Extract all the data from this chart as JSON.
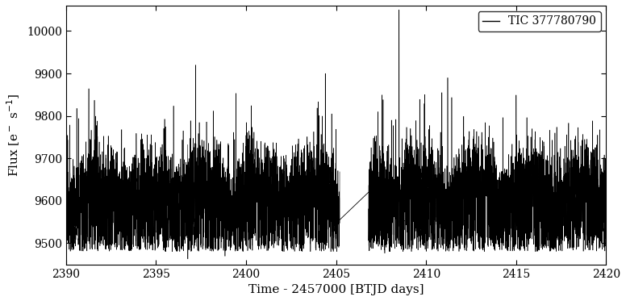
{
  "xlabel": "Time - 2457000 [BTJD days]",
  "ylabel": "Flux [e$^-$ s$^{-1}$]",
  "legend_label": "TIC 377780790",
  "xlim": [
    2390,
    2420
  ],
  "ylim": [
    9450,
    10060
  ],
  "yticks": [
    9500,
    9600,
    9700,
    9800,
    9900,
    10000
  ],
  "xticks": [
    2390,
    2395,
    2400,
    2405,
    2410,
    2415,
    2420
  ],
  "line_color": "black",
  "line_width": 0.4,
  "background_color": "white",
  "segment1_xstart": 2390.0,
  "segment1_xend": 2405.2,
  "segment2_xstart": 2406.8,
  "segment2_xend": 2420.0,
  "gap_connect_y1": 9555,
  "gap_connect_y2": 9620,
  "base_flux": 9635,
  "flux_band_low": 9480,
  "flux_band_high": 9660,
  "seed": 12345,
  "n_points_seg1": 3600,
  "n_points_seg2": 3200,
  "figsize": [
    7.76,
    3.73
  ],
  "dpi": 100,
  "font_family": "serif"
}
